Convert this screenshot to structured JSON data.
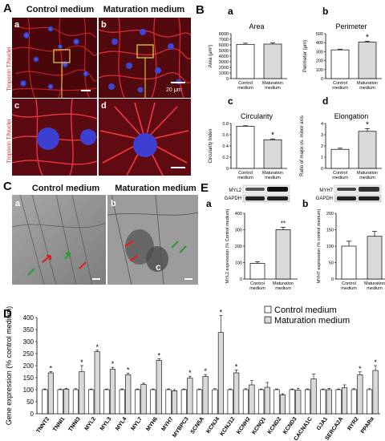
{
  "panelA": {
    "letter": "A",
    "headers": [
      "Control medium",
      "Maturation medium"
    ],
    "sublabels": [
      "a",
      "b",
      "c",
      "d"
    ],
    "stain_label": "Troponin T/Nuclei",
    "scale_text": "20 μm"
  },
  "panelB": {
    "letter": "B",
    "charts": [
      {
        "sub": "a",
        "title": "Area",
        "ylabel": "Area (μm²)",
        "yticks": [
          "0",
          "1000",
          "2000",
          "3000",
          "4000",
          "5000",
          "6000",
          "7000",
          "8000"
        ],
        "ymax": 8000,
        "categories": [
          "Control medium",
          "Maturation medium"
        ],
        "values": [
          6100,
          6150
        ],
        "errors": [
          200,
          250
        ],
        "sig": [
          false,
          false
        ]
      },
      {
        "sub": "b",
        "title": "Perimeter",
        "ylabel": "Perimeter (μm)",
        "yticks": [
          "0",
          "100",
          "200",
          "300",
          "400",
          "500"
        ],
        "ymax": 500,
        "categories": [
          "Control medium",
          "Maturation medium"
        ],
        "values": [
          320,
          405
        ],
        "errors": [
          8,
          10
        ],
        "sig": [
          false,
          true
        ]
      },
      {
        "sub": "c",
        "title": "Circularity",
        "ylabel": "Circularity Index",
        "yticks": [
          "0",
          "0.2",
          "0.4",
          "0.6",
          "0.8"
        ],
        "ymax": 0.8,
        "categories": [
          "Control medium",
          "Maturation medium"
        ],
        "values": [
          0.75,
          0.51
        ],
        "errors": [
          0.01,
          0.015
        ],
        "sig": [
          false,
          true
        ]
      },
      {
        "sub": "d",
        "title": "Elongation",
        "ylabel": "Ratio of major vs. minor axis",
        "yticks": [
          "0",
          "1",
          "2",
          "3",
          "4"
        ],
        "ymax": 4,
        "categories": [
          "Control medium",
          "Maturation medium"
        ],
        "values": [
          1.7,
          3.3
        ],
        "errors": [
          0.1,
          0.25
        ],
        "sig": [
          false,
          true
        ]
      }
    ]
  },
  "panelC": {
    "letter": "C",
    "headers": [
      "Control medium",
      "Maturation medium"
    ],
    "sublabels": [
      "a",
      "b"
    ],
    "inset_label": "c"
  },
  "panelE": {
    "letter": "E",
    "blots": [
      {
        "sub": "a",
        "protein": "MYL2",
        "loading": "GAPDH",
        "ylabel": "MYL2 expression (% Control medium)",
        "yticks": [
          "0",
          "100",
          "200",
          "300",
          "400"
        ],
        "ymax": 400,
        "categories": [
          "Control medium",
          "Maturation medium"
        ],
        "values": [
          95,
          300
        ],
        "errors": [
          10,
          15
        ],
        "sig": [
          "",
          "**"
        ]
      },
      {
        "sub": "b",
        "protein": "MYH7",
        "loading": "GAPDH",
        "ylabel": "MYH7 expression (% control medium)",
        "yticks": [
          "0",
          "50",
          "100",
          "150",
          "200"
        ],
        "ymax": 200,
        "categories": [
          "Control medium",
          "Maturation medium"
        ],
        "values": [
          100,
          130
        ],
        "errors": [
          15,
          15
        ],
        "sig": [
          "",
          ""
        ]
      }
    ]
  },
  "panelD": {
    "letter": "D",
    "legend": [
      "Control medium",
      "Maturation medium"
    ],
    "chart_data": {
      "type": "bar",
      "ylabel": "Gene expression (% control medium)",
      "ylim": [
        0,
        400
      ],
      "yticks": [
        "0",
        "50",
        "100",
        "150",
        "200",
        "250",
        "300",
        "350",
        "400"
      ],
      "categories": [
        "TNNT2",
        "TNNI1",
        "TNNI3",
        "MYL2",
        "MYL3",
        "MYL4",
        "MYL7",
        "MYH6",
        "MYH7",
        "MYBPC3",
        "SCN5A",
        "KCNJ4",
        "KCNJ12",
        "KCNH2",
        "KCNQ1",
        "KCND2",
        "KCND3",
        "CACNA1C",
        "GJA1",
        "SERCA2A",
        "RYR2",
        "PPARα"
      ],
      "series": [
        {
          "name": "Control medium",
          "values": [
            100,
            100,
            100,
            100,
            100,
            100,
            100,
            100,
            100,
            100,
            100,
            100,
            100,
            100,
            100,
            100,
            100,
            100,
            100,
            100,
            100,
            100
          ],
          "errors": [
            3,
            3,
            4,
            3,
            3,
            3,
            3,
            3,
            3,
            3,
            3,
            4,
            3,
            4,
            3,
            3,
            3,
            3,
            3,
            3,
            4,
            4
          ]
        },
        {
          "name": "Maturation medium",
          "values": [
            170,
            102,
            175,
            258,
            185,
            162,
            122,
            222,
            95,
            148,
            155,
            338,
            170,
            120,
            110,
            78,
            98,
            145,
            100,
            108,
            162,
            180
          ],
          "errors": [
            5,
            4,
            25,
            6,
            8,
            6,
            5,
            7,
            5,
            8,
            8,
            70,
            12,
            18,
            20,
            5,
            8,
            20,
            5,
            12,
            12,
            20
          ],
          "sig": [
            true,
            false,
            true,
            true,
            true,
            true,
            false,
            true,
            false,
            true,
            true,
            true,
            true,
            false,
            false,
            false,
            false,
            false,
            false,
            false,
            true,
            true
          ]
        }
      ]
    }
  }
}
